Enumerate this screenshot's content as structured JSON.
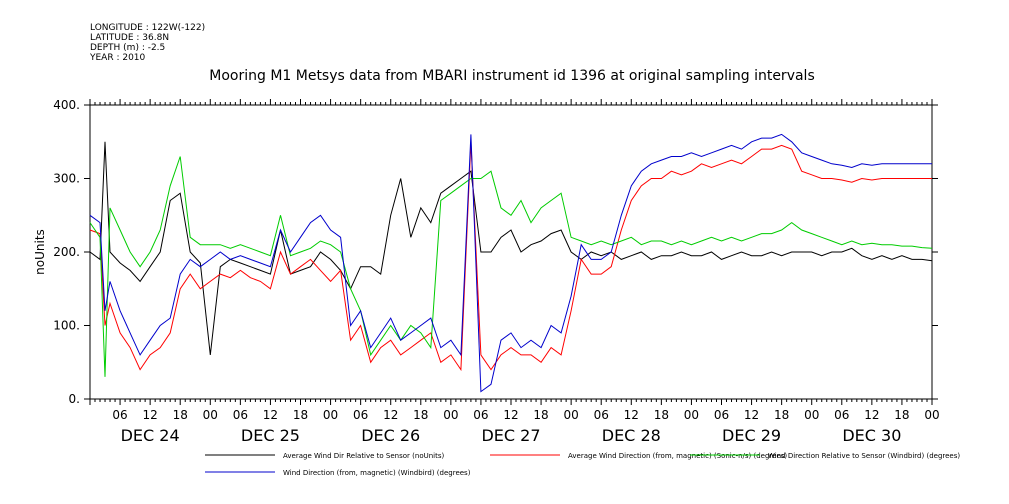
{
  "meta": {
    "longitude": "LONGITUDE : 122W(-122)",
    "latitude": "LATITUDE : 36.8N",
    "depth": "DEPTH (m) : -2.5",
    "year": "YEAR : 2010"
  },
  "chart_data": {
    "type": "line",
    "title": "Mooring M1 Metsys data from MBARI instrument id 1396 at original sampling intervals",
    "ylabel": "noUnits",
    "xlabel": "",
    "ylim": [
      0,
      400
    ],
    "y_ticks": [
      "0.",
      "100.",
      "200.",
      "300.",
      "400."
    ],
    "x_range_hours": [
      0,
      168
    ],
    "x_tick_labels": [
      "06",
      "12",
      "18",
      "00",
      "06",
      "12",
      "18",
      "00",
      "06",
      "12",
      "18",
      "00",
      "06",
      "12",
      "18",
      "00",
      "06",
      "12",
      "18",
      "00",
      "06",
      "12",
      "18",
      "00",
      "06",
      "12",
      "18",
      "00"
    ],
    "x_day_labels": [
      "DEC 24",
      "DEC 25",
      "DEC 26",
      "DEC 27",
      "DEC 28",
      "DEC 29",
      "DEC 30"
    ],
    "grid": false,
    "legend_position": "bottom",
    "series": [
      {
        "name": "Average Wind Dir Relative to Sensor (noUnits)",
        "color": "#000000",
        "x": [
          0,
          2,
          3,
          4,
          6,
          8,
          10,
          12,
          14,
          16,
          18,
          20,
          22,
          24,
          26,
          28,
          30,
          32,
          34,
          36,
          38,
          40,
          42,
          44,
          46,
          48,
          50,
          52,
          54,
          56,
          58,
          60,
          62,
          64,
          66,
          68,
          70,
          72,
          74,
          76,
          78,
          80,
          82,
          84,
          86,
          88,
          90,
          92,
          94,
          96,
          98,
          100,
          102,
          104,
          106,
          108,
          110,
          112,
          114,
          116,
          118,
          120,
          122,
          124,
          126,
          128,
          130,
          132,
          134,
          136,
          138,
          140,
          142,
          144,
          146,
          148,
          150,
          152,
          154,
          156,
          158,
          160,
          162,
          164,
          166,
          168
        ],
        "values": [
          200,
          190,
          350,
          200,
          185,
          175,
          160,
          180,
          200,
          270,
          280,
          200,
          185,
          60,
          180,
          190,
          185,
          180,
          175,
          170,
          230,
          170,
          175,
          180,
          200,
          190,
          175,
          150,
          180,
          180,
          170,
          250,
          300,
          220,
          260,
          240,
          280,
          290,
          300,
          310,
          200,
          200,
          220,
          230,
          200,
          210,
          215,
          225,
          230,
          200,
          190,
          200,
          195,
          200,
          190,
          195,
          200,
          190,
          195,
          195,
          200,
          195,
          195,
          200,
          190,
          195,
          200,
          195,
          195,
          200,
          195,
          200,
          200,
          200,
          195,
          200,
          200,
          205,
          195,
          190,
          195,
          190,
          195,
          190,
          190,
          188
        ]
      },
      {
        "name": "Average Wind Direction (from, magnetic) (Sonic-n/s) (degrees)",
        "color": "#ff0000",
        "x": [
          0,
          2,
          3,
          4,
          6,
          8,
          10,
          12,
          14,
          16,
          18,
          20,
          22,
          24,
          26,
          28,
          30,
          32,
          34,
          36,
          38,
          40,
          42,
          44,
          46,
          48,
          50,
          52,
          54,
          56,
          58,
          60,
          62,
          64,
          66,
          68,
          70,
          72,
          74,
          76,
          78,
          80,
          82,
          84,
          86,
          88,
          90,
          92,
          94,
          96,
          98,
          100,
          102,
          104,
          106,
          108,
          110,
          112,
          114,
          116,
          118,
          120,
          122,
          124,
          126,
          128,
          130,
          132,
          134,
          136,
          138,
          140,
          142,
          144,
          146,
          148,
          150,
          152,
          154,
          156,
          158,
          160,
          162,
          164,
          166,
          168
        ],
        "values": [
          230,
          225,
          100,
          130,
          90,
          70,
          40,
          60,
          70,
          90,
          150,
          170,
          150,
          160,
          170,
          165,
          175,
          165,
          160,
          150,
          200,
          170,
          180,
          190,
          175,
          160,
          175,
          80,
          100,
          50,
          70,
          80,
          60,
          70,
          80,
          90,
          50,
          60,
          40,
          350,
          60,
          40,
          60,
          70,
          60,
          60,
          50,
          70,
          60,
          120,
          190,
          170,
          170,
          180,
          230,
          270,
          290,
          300,
          300,
          310,
          305,
          310,
          320,
          315,
          320,
          325,
          320,
          330,
          340,
          340,
          345,
          340,
          310,
          305,
          300,
          300,
          298,
          295,
          300,
          298,
          300,
          300,
          300,
          300,
          300,
          300
        ]
      },
      {
        "name": "Wind Direction Relative to Sensor (Windbird) (degrees)",
        "color": "#00cc00",
        "x": [
          0,
          2,
          3,
          4,
          6,
          8,
          10,
          12,
          14,
          16,
          18,
          20,
          22,
          24,
          26,
          28,
          30,
          32,
          34,
          36,
          38,
          40,
          42,
          44,
          46,
          48,
          50,
          52,
          54,
          56,
          58,
          60,
          62,
          64,
          66,
          68,
          70,
          72,
          74,
          76,
          78,
          80,
          82,
          84,
          86,
          88,
          90,
          92,
          94,
          96,
          98,
          100,
          102,
          104,
          106,
          108,
          110,
          112,
          114,
          116,
          118,
          120,
          122,
          124,
          126,
          128,
          130,
          132,
          134,
          136,
          138,
          140,
          142,
          144,
          146,
          148,
          150,
          152,
          154,
          156,
          158,
          160,
          162,
          164,
          166,
          168
        ],
        "values": [
          240,
          220,
          30,
          260,
          230,
          200,
          180,
          200,
          230,
          290,
          330,
          220,
          210,
          210,
          210,
          205,
          210,
          205,
          200,
          195,
          250,
          195,
          200,
          205,
          215,
          210,
          200,
          150,
          120,
          60,
          80,
          100,
          80,
          100,
          90,
          70,
          270,
          280,
          290,
          300,
          300,
          310,
          260,
          250,
          270,
          240,
          260,
          270,
          280,
          220,
          215,
          210,
          215,
          210,
          215,
          220,
          210,
          215,
          215,
          210,
          215,
          210,
          215,
          220,
          215,
          220,
          215,
          220,
          225,
          225,
          230,
          240,
          230,
          225,
          220,
          215,
          210,
          215,
          210,
          212,
          210,
          210,
          208,
          208,
          206,
          205
        ]
      },
      {
        "name": "Wind Direction (from, magnetic) (Windbird) (degrees)",
        "color": "#0000cc",
        "x": [
          0,
          2,
          3,
          4,
          6,
          8,
          10,
          12,
          14,
          16,
          18,
          20,
          22,
          24,
          26,
          28,
          30,
          32,
          34,
          36,
          38,
          40,
          42,
          44,
          46,
          48,
          50,
          52,
          54,
          56,
          58,
          60,
          62,
          64,
          66,
          68,
          70,
          72,
          74,
          76,
          78,
          80,
          82,
          84,
          86,
          88,
          90,
          92,
          94,
          96,
          98,
          100,
          102,
          104,
          106,
          108,
          110,
          112,
          114,
          116,
          118,
          120,
          122,
          124,
          126,
          128,
          130,
          132,
          134,
          136,
          138,
          140,
          142,
          144,
          146,
          148,
          150,
          152,
          154,
          156,
          158,
          160,
          162,
          164,
          166,
          168
        ],
        "values": [
          250,
          240,
          120,
          160,
          120,
          90,
          60,
          80,
          100,
          110,
          170,
          190,
          180,
          190,
          200,
          190,
          195,
          190,
          185,
          180,
          230,
          200,
          220,
          240,
          250,
          230,
          220,
          100,
          120,
          70,
          90,
          110,
          80,
          90,
          100,
          110,
          70,
          80,
          60,
          360,
          10,
          20,
          80,
          90,
          70,
          80,
          70,
          100,
          90,
          140,
          210,
          190,
          190,
          200,
          250,
          290,
          310,
          320,
          325,
          330,
          330,
          335,
          330,
          335,
          340,
          345,
          340,
          350,
          355,
          355,
          360,
          350,
          335,
          330,
          325,
          320,
          318,
          315,
          320,
          318,
          320,
          320,
          320,
          320,
          320,
          320
        ]
      }
    ]
  }
}
